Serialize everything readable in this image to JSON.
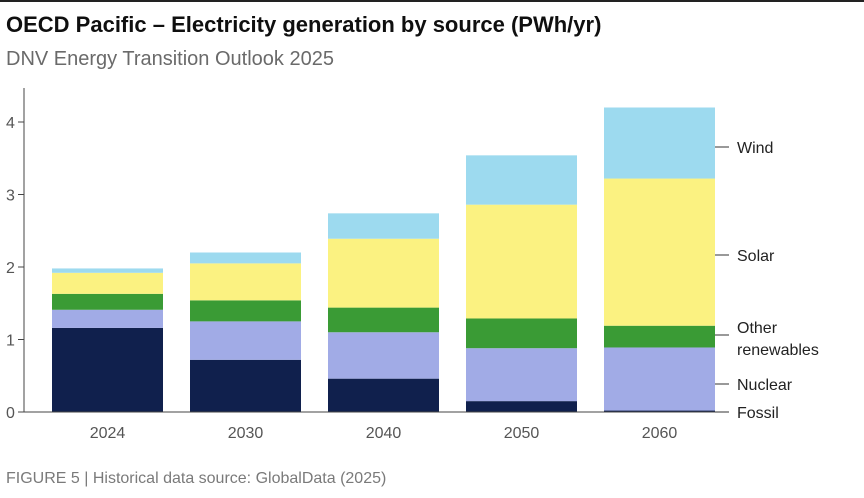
{
  "title": "OECD Pacific – Electricity generation by source (PWh/yr)",
  "subtitle": "DNV Energy Transition Outlook 2025",
  "footer": "FIGURE 5 | Historical data source: GlobalData (2025)",
  "chart_data": {
    "type": "bar",
    "stacked": true,
    "categories": [
      "2024",
      "2030",
      "2040",
      "2050",
      "2060"
    ],
    "series": [
      {
        "name": "Fossil",
        "color": "#10204d",
        "values": [
          1.16,
          0.72,
          0.46,
          0.15,
          0.02
        ]
      },
      {
        "name": "Nuclear",
        "color": "#a1abe6",
        "values": [
          0.25,
          0.53,
          0.64,
          0.73,
          0.87
        ]
      },
      {
        "name": "Other renewables",
        "color": "#3a9b35",
        "values": [
          0.22,
          0.29,
          0.34,
          0.41,
          0.3
        ]
      },
      {
        "name": "Solar",
        "color": "#fbf281",
        "values": [
          0.29,
          0.51,
          0.95,
          1.57,
          2.03
        ]
      },
      {
        "name": "Wind",
        "color": "#9ddaef",
        "values": [
          0.06,
          0.15,
          0.35,
          0.68,
          0.98
        ]
      }
    ],
    "ylim": [
      0,
      4.5
    ],
    "yticks": [
      "0",
      "1",
      "2",
      "3",
      "4"
    ],
    "legend": {
      "placement": "right",
      "labels": [
        "Wind",
        "Solar",
        "Other\nrenewables",
        "Nuclear",
        "Fossil"
      ]
    }
  }
}
